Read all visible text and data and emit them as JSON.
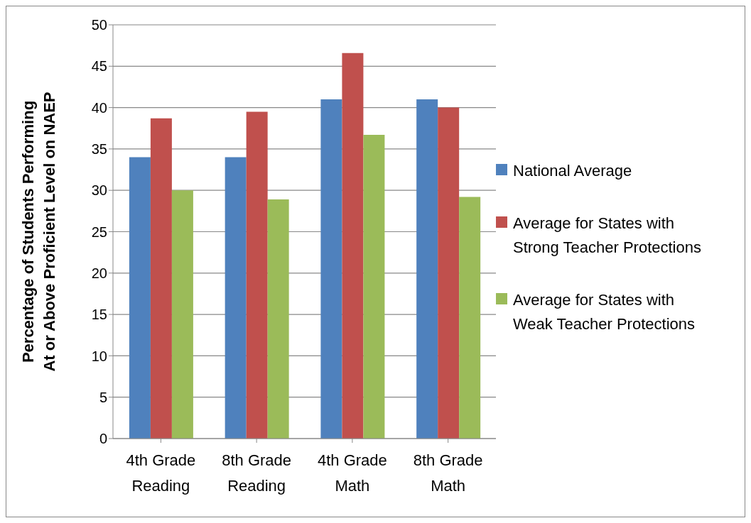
{
  "chart_data": {
    "type": "bar",
    "ylabel": "Percentage of Students Performing At or Above Proficient Level on NAEP",
    "categories": [
      "4th Grade Reading",
      "8th Grade Reading",
      "4th Grade Math",
      "8th Grade Math"
    ],
    "series": [
      {
        "name": "National Average",
        "color": "#4f81bd",
        "values": [
          34,
          34,
          41,
          41
        ]
      },
      {
        "name": "Average for States with Strong Teacher Protections",
        "color": "#c0504d",
        "values": [
          38.7,
          39.5,
          46.6,
          40
        ]
      },
      {
        "name": "Average for States with Weak Teacher Protections",
        "color": "#9bbb59",
        "values": [
          30,
          28.9,
          36.7,
          29.2
        ]
      }
    ],
    "ylim": [
      0,
      50
    ],
    "yticks": [
      0,
      5,
      10,
      15,
      20,
      25,
      30,
      35,
      40,
      45,
      50
    ],
    "grid": "y",
    "legend": "right"
  }
}
